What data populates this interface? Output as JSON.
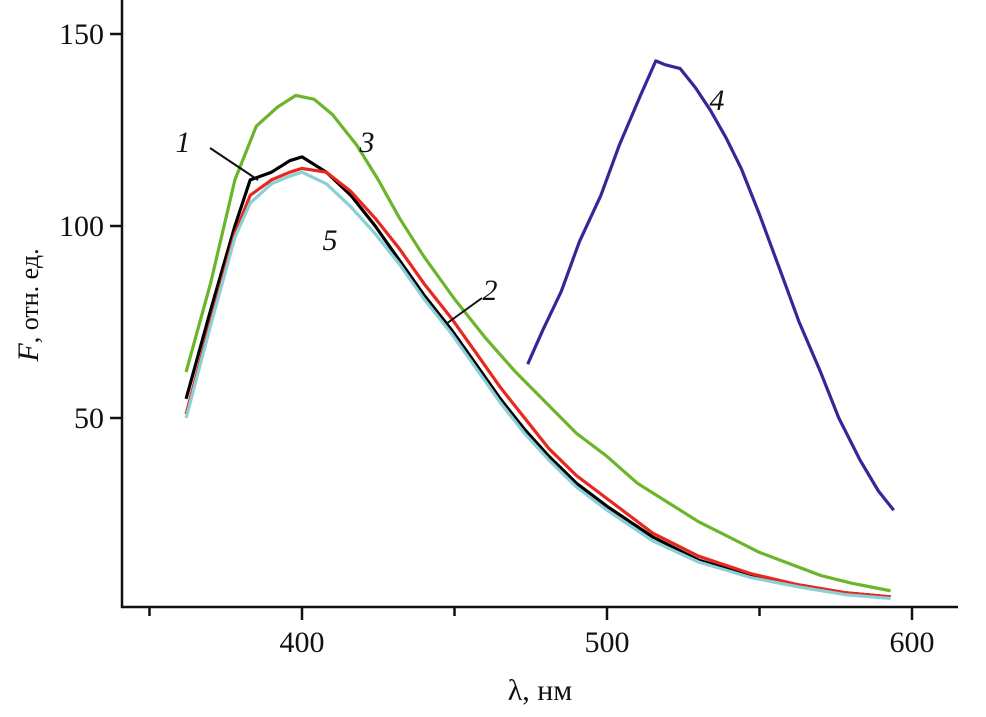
{
  "chart_data": {
    "type": "line",
    "title": "",
    "xlabel": "λ, нм",
    "ylabel_var": "F",
    "ylabel_rest": ", отн. ед.",
    "xlim": [
      340,
      615
    ],
    "ylim": [
      0,
      159
    ],
    "x_ticks": [
      400,
      500,
      600
    ],
    "x_minor_ticks": [
      350,
      450,
      550
    ],
    "y_ticks": [
      50,
      100,
      150
    ],
    "grid": false,
    "series": [
      {
        "name": "1",
        "color": "#000000",
        "x": [
          362,
          370,
          378,
          383,
          390,
          396,
          400,
          408,
          416,
          424,
          432,
          440,
          449,
          457,
          465,
          473,
          481,
          490,
          500,
          515,
          530,
          547,
          563,
          578,
          593
        ],
        "y": [
          55,
          78,
          100,
          112,
          114,
          117,
          118,
          114,
          108,
          100,
          91,
          82,
          73,
          64,
          55,
          47,
          40,
          33,
          27,
          19,
          13,
          9,
          6.5,
          4.5,
          3.4
        ]
      },
      {
        "name": "2",
        "color": "#e8281e",
        "x": [
          362,
          370,
          378,
          383,
          390,
          396,
          400,
          408,
          416,
          424,
          432,
          440,
          449,
          457,
          465,
          473,
          481,
          490,
          500,
          515,
          530,
          547,
          563,
          578,
          593
        ],
        "y": [
          51,
          75,
          98,
          108,
          112,
          114,
          115,
          114,
          109,
          102,
          94,
          85,
          76,
          67,
          58,
          50,
          42,
          35,
          29,
          20,
          14,
          9.5,
          6.5,
          4.5,
          3.4
        ]
      },
      {
        "name": "3",
        "color": "#6bb52a",
        "x": [
          362,
          370,
          378,
          385,
          392,
          398,
          404,
          410,
          418,
          425,
          432,
          440,
          450,
          460,
          470,
          480,
          490,
          500,
          510,
          520,
          530,
          540,
          550,
          560,
          570,
          580,
          593
        ],
        "y": [
          62,
          85,
          112,
          126,
          131,
          134,
          133,
          129,
          121,
          112,
          102,
          92,
          81,
          71,
          62,
          54,
          46,
          40,
          33,
          28,
          23,
          19,
          15,
          12,
          9,
          7,
          5
        ]
      },
      {
        "name": "4",
        "color": "#3a2596",
        "x": [
          474,
          479,
          485,
          491,
          498,
          504,
          511,
          516,
          519,
          524,
          529,
          534,
          539,
          544,
          550,
          557,
          563,
          570,
          576,
          583,
          589,
          594
        ],
        "y": [
          64,
          73,
          83,
          96,
          108,
          121,
          134,
          143,
          142,
          141,
          136,
          130,
          123,
          115,
          103,
          88,
          75,
          62,
          50,
          39,
          31,
          26
        ]
      },
      {
        "name": "5",
        "color": "#8ad0d6",
        "x": [
          362,
          370,
          378,
          383,
          390,
          396,
          400,
          408,
          416,
          424,
          432,
          440,
          449,
          457,
          465,
          473,
          481,
          490,
          500,
          515,
          530,
          547,
          563,
          578,
          593
        ],
        "y": [
          50,
          74,
          97,
          106,
          111,
          113,
          114,
          111,
          105,
          98,
          90,
          81,
          72,
          63,
          54,
          46,
          39,
          32,
          26,
          18,
          12.5,
          8.5,
          6,
          4,
          3
        ]
      }
    ]
  }
}
